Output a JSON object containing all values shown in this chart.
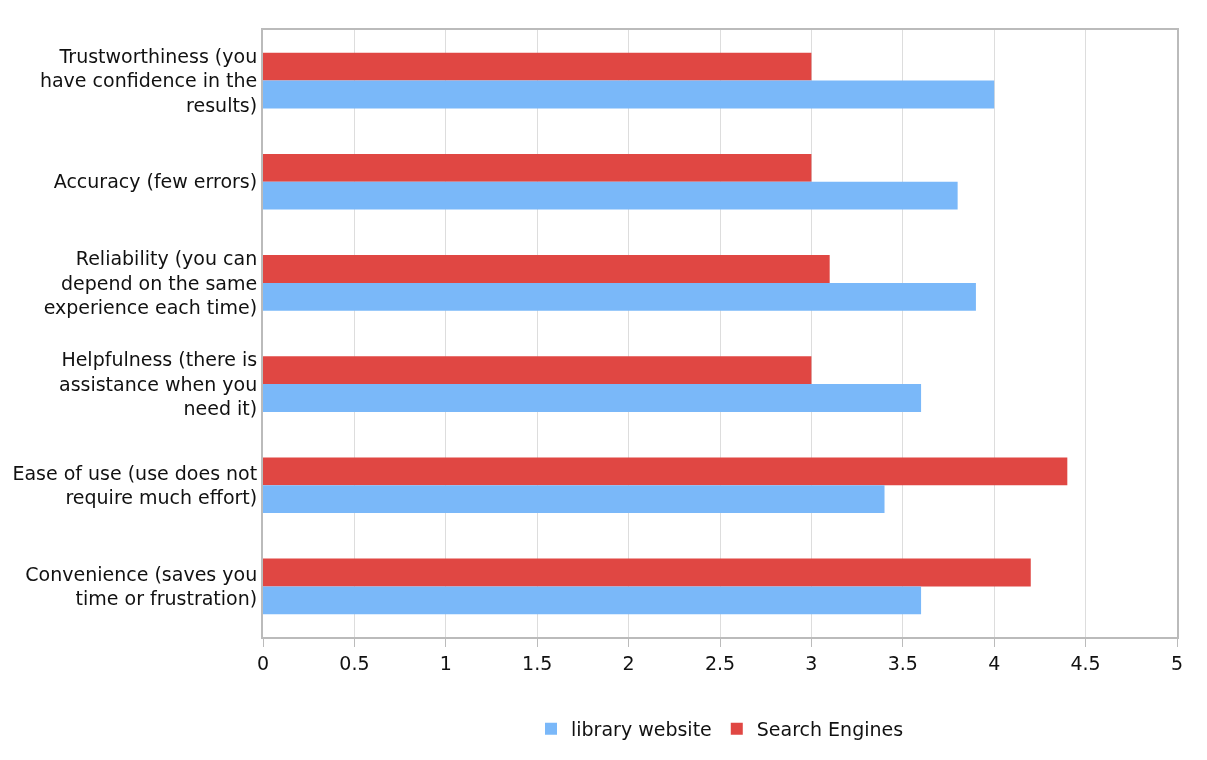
{
  "chart_data": {
    "type": "bar",
    "orientation": "horizontal",
    "categories": [
      "Trustworthiness (you\nhave confidence in the\nresults)",
      "Accuracy (few errors)",
      "Reliability (you can\ndepend on the same\nexperience each time)",
      "Helpfulness (there is\nassistance when you\nneed it)",
      "Ease of use (use does not\nrequire much effort)",
      "Convenience (saves you\ntime or frustration)"
    ],
    "series": [
      {
        "name": "library website",
        "color": "#7ab8f9",
        "values": [
          4.0,
          3.8,
          3.9,
          3.6,
          3.4,
          3.6
        ]
      },
      {
        "name": "Search Engines",
        "color": "#e04743",
        "values": [
          3.0,
          3.0,
          3.1,
          3.0,
          4.4,
          4.2
        ]
      }
    ],
    "xlim": [
      0,
      5
    ],
    "xticks": [
      0,
      0.5,
      1,
      1.5,
      2,
      2.5,
      3,
      3.5,
      4,
      4.5,
      5
    ],
    "grid": "x",
    "legend": "bottom"
  }
}
